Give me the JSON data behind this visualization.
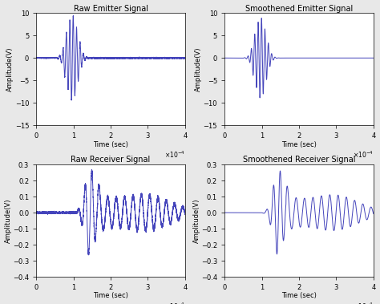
{
  "titles": [
    "Raw Emitter Signal",
    "Smoothened Emitter Signal",
    "Raw Receiver Signal",
    "Smoothened Receiver Signal"
  ],
  "xlabel": "Time (sec)",
  "ylabel": "Amplitude(V)",
  "emitter_ylim": [
    -15,
    10
  ],
  "receiver_ylim": [
    -0.4,
    0.3
  ],
  "emitter_yticks": [
    -15,
    -10,
    -5,
    0,
    5,
    10
  ],
  "receiver_yticks": [
    -0.4,
    -0.3,
    -0.2,
    -0.1,
    0,
    0.1,
    0.2,
    0.3
  ],
  "xlim": [
    0,
    0.0004
  ],
  "xticks": [
    0,
    0.0001,
    0.0002,
    0.0003,
    0.0004
  ],
  "line_color": "#4444bb",
  "background": "#ffffff",
  "fig_facecolor": "#e8e8e8"
}
